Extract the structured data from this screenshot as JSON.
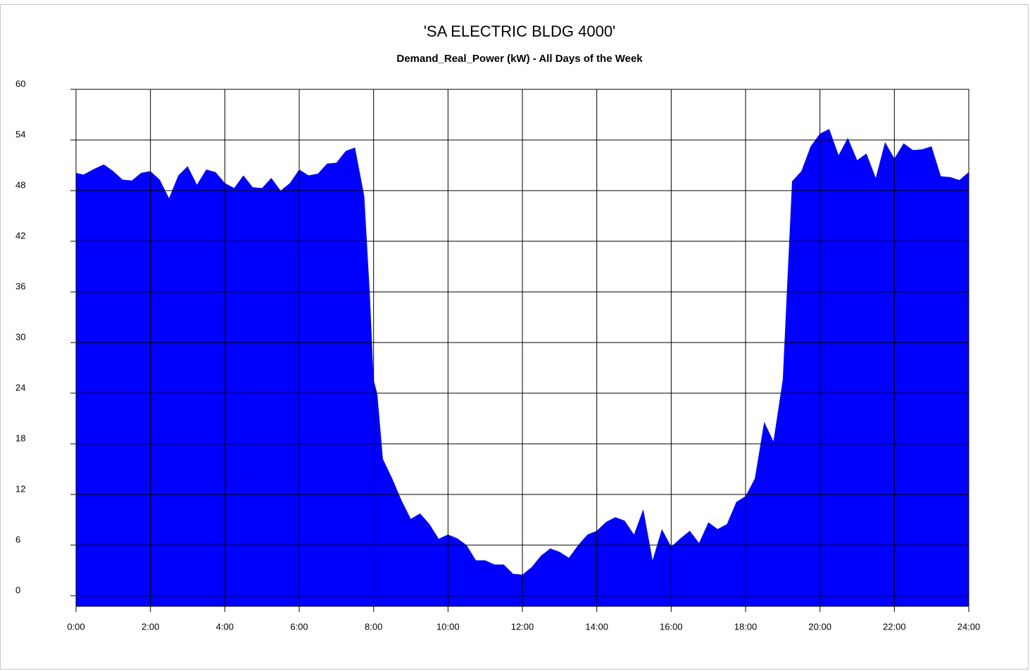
{
  "chart_data": {
    "type": "area",
    "title": "'SA ELECTRIC BLDG 4000'",
    "subtitle": "Demand_Real_Power (kW) - All Days of the Week",
    "x": [
      0,
      0.2,
      0.5,
      0.75,
      1,
      1.25,
      1.5,
      1.75,
      2,
      2.25,
      2.5,
      2.75,
      3,
      3.25,
      3.5,
      3.75,
      4,
      4.25,
      4.5,
      4.75,
      5,
      5.25,
      5.5,
      5.75,
      6,
      6.25,
      6.5,
      6.75,
      7,
      7.25,
      7.5,
      7.75,
      7.9,
      8,
      8.1,
      8.25,
      8.5,
      8.75,
      9,
      9.25,
      9.5,
      9.75,
      10,
      10.25,
      10.5,
      10.75,
      11,
      11.25,
      11.5,
      11.75,
      12,
      12.25,
      12.5,
      12.75,
      13,
      13.25,
      13.5,
      13.75,
      14,
      14.25,
      14.5,
      14.75,
      15,
      15.25,
      15.5,
      15.75,
      16,
      16.25,
      16.5,
      16.75,
      17,
      17.25,
      17.5,
      17.75,
      18,
      18.25,
      18.5,
      18.75,
      19,
      19.15,
      19.25,
      19.5,
      19.75,
      20,
      20.25,
      20.5,
      20.75,
      21,
      21.25,
      21.5,
      21.75,
      22,
      22.25,
      22.5,
      22.75,
      23,
      23.25,
      23.5,
      23.75,
      24
    ],
    "series": [
      {
        "color": "#0000ff",
        "values": [
          50.1,
          49.9,
          50.6,
          51.1,
          50.3,
          49.3,
          49.2,
          50.1,
          50.3,
          49.3,
          47.1,
          49.8,
          50.9,
          48.7,
          50.5,
          50.2,
          48.9,
          48.3,
          49.8,
          48.4,
          48.3,
          49.5,
          48.0,
          48.9,
          50.5,
          49.8,
          50.0,
          51.2,
          51.3,
          52.7,
          53.1,
          47.3,
          35.6,
          25.6,
          23.9,
          16.2,
          13.9,
          11.3,
          9.1,
          9.75,
          8.5,
          6.75,
          7.25,
          6.8,
          6.0,
          4.2,
          4.2,
          3.7,
          3.7,
          2.6,
          2.5,
          3.4,
          4.75,
          5.6,
          5.2,
          4.5,
          6.0,
          7.25,
          7.7,
          8.75,
          9.3,
          8.9,
          7.25,
          10.25,
          4.2,
          7.9,
          5.8,
          6.8,
          7.7,
          6.25,
          8.7,
          7.9,
          8.5,
          11.1,
          11.8,
          13.9,
          20.6,
          18.3,
          25.6,
          39.75,
          49.1,
          50.3,
          53.25,
          54.75,
          55.3,
          52.2,
          54.25,
          51.6,
          52.4,
          49.5,
          53.75,
          51.8,
          53.6,
          52.8,
          52.9,
          53.25,
          49.7,
          49.6,
          49.25,
          50.2
        ]
      }
    ],
    "xlim": [
      0,
      24
    ],
    "xticks": [
      {
        "value": 0,
        "label": "0:00"
      },
      {
        "value": 2,
        "label": "2:00"
      },
      {
        "value": 4,
        "label": "4:00"
      },
      {
        "value": 6,
        "label": "6:00"
      },
      {
        "value": 8,
        "label": "8:00"
      },
      {
        "value": 10,
        "label": "10:00"
      },
      {
        "value": 12,
        "label": "12:00"
      },
      {
        "value": 14,
        "label": "14:00"
      },
      {
        "value": 16,
        "label": "16:00"
      },
      {
        "value": 18,
        "label": "18:00"
      },
      {
        "value": 20,
        "label": "20:00"
      },
      {
        "value": 22,
        "label": "22:00"
      },
      {
        "value": 24,
        "label": "24:00"
      }
    ],
    "ylim": [
      -1.25,
      60
    ],
    "yticks": [
      0,
      6,
      12,
      18,
      24,
      30,
      36,
      42,
      48,
      54,
      60
    ],
    "grid": true
  }
}
